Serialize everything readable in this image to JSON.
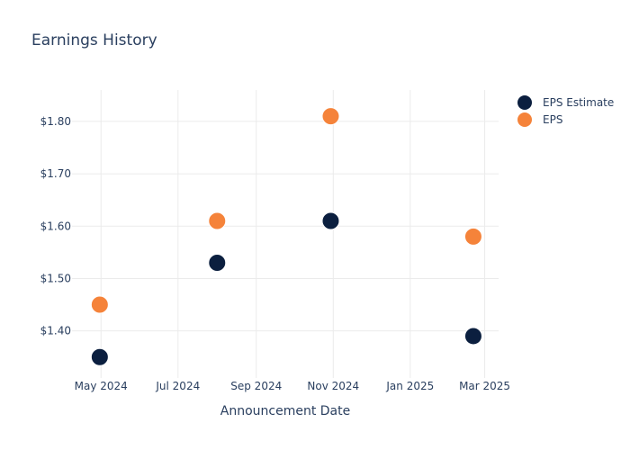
{
  "colors": {
    "estimate": "#0b1f3f",
    "eps": "#f5833a",
    "grid": "#ebebeb",
    "text": "#2a3f5f"
  },
  "chart_data": {
    "type": "scatter",
    "title": "Earnings History",
    "xlabel": "Announcement Date",
    "ylabel": "",
    "x_ticks": [
      {
        "date": "2024-05-01",
        "label": "May 2024"
      },
      {
        "date": "2024-07-01",
        "label": "Jul 2024"
      },
      {
        "date": "2024-09-01",
        "label": "Sep 2024"
      },
      {
        "date": "2024-11-01",
        "label": "Nov 2024"
      },
      {
        "date": "2025-01-01",
        "label": "Jan 2025"
      },
      {
        "date": "2025-03-01",
        "label": "Mar 2025"
      }
    ],
    "y_ticks": [
      {
        "value": 1.4,
        "label": "$1.40"
      },
      {
        "value": 1.5,
        "label": "$1.50"
      },
      {
        "value": 1.6,
        "label": "$1.60"
      },
      {
        "value": 1.7,
        "label": "$1.70"
      },
      {
        "value": 1.8,
        "label": "$1.80"
      }
    ],
    "xlim": [
      "2024-04-08",
      "2025-03-12"
    ],
    "ylim": [
      1.31,
      1.86
    ],
    "grid": true,
    "legend_position": "top-right",
    "series": [
      {
        "name": "EPS Estimate",
        "color": "#0b1f3f",
        "points": [
          {
            "x": "2024-04-30",
            "y": 1.35
          },
          {
            "x": "2024-08-01",
            "y": 1.53
          },
          {
            "x": "2024-10-30",
            "y": 1.61
          },
          {
            "x": "2025-02-20",
            "y": 1.39
          }
        ]
      },
      {
        "name": "EPS",
        "color": "#f5833a",
        "points": [
          {
            "x": "2024-04-30",
            "y": 1.45
          },
          {
            "x": "2024-08-01",
            "y": 1.61
          },
          {
            "x": "2024-10-30",
            "y": 1.81
          },
          {
            "x": "2025-02-20",
            "y": 1.58
          }
        ]
      }
    ]
  }
}
